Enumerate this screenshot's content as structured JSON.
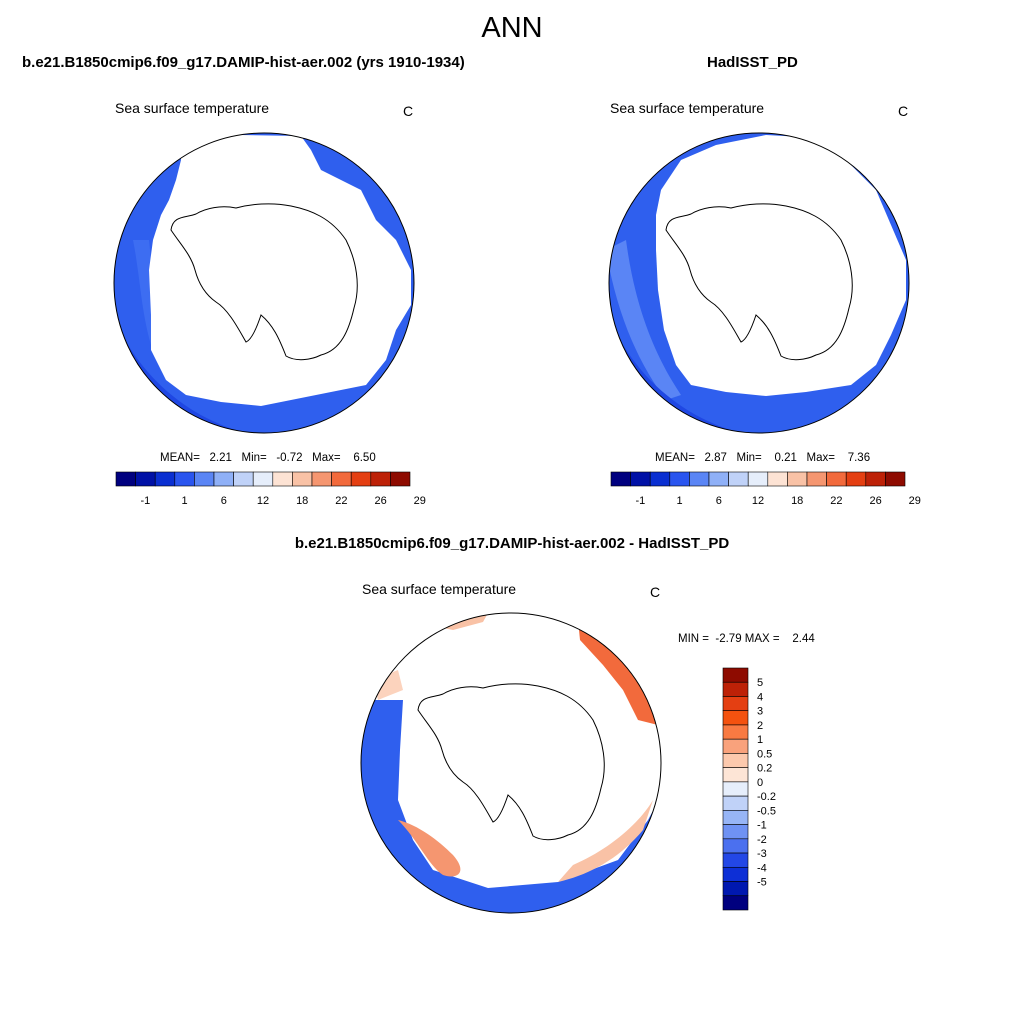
{
  "main_title": "ANN",
  "panel_left": {
    "title": "b.e21.B1850cmip6.f09_g17.DAMIP-hist-aer.002 (yrs 1910-1934)",
    "var_label": "Sea surface temperature",
    "units": "C",
    "stats": "MEAN=   2.21   Min=   -0.72   Max=    6.50"
  },
  "panel_right": {
    "title": "HadISST_PD",
    "var_label": "Sea surface temperature",
    "units": "C",
    "stats": "MEAN=   2.87   Min=    0.21   Max=    7.36"
  },
  "panel_diff": {
    "title": "b.e21.B1850cmip6.f09_g17.DAMIP-hist-aer.002 - HadISST_PD",
    "var_label": "Sea surface temperature",
    "units": "C",
    "stats": "MIN =  -2.79 MAX =    2.44"
  },
  "abs_colorbar": {
    "colors": [
      "#00007f",
      "#0011a6",
      "#0a2fd1",
      "#2a55ef",
      "#5a85f5",
      "#8fb0f7",
      "#c0d2f8",
      "#e6eefb",
      "#fde3d4",
      "#f9c2a6",
      "#f59670",
      "#f26a3c",
      "#e43f12",
      "#bd2107",
      "#8e0b00"
    ],
    "tick_labels": [
      "-1",
      "1",
      "6",
      "12",
      "18",
      "22",
      "26",
      "29"
    ]
  },
  "diff_colorbar": {
    "colors": [
      "#8e0b00",
      "#bd2107",
      "#e43f12",
      "#f4520f",
      "#f97a42",
      "#f9a27c",
      "#fcc9ad",
      "#fde5d6",
      "#e6eefb",
      "#c0d2f8",
      "#97b5f6",
      "#6f92f3",
      "#4b70ef",
      "#2347e6",
      "#0d2fd6",
      "#0018b0",
      "#00007f"
    ],
    "labels": [
      "5",
      "4",
      "3",
      "2",
      "1",
      "0.5",
      "0.2",
      "0",
      "-0.2",
      "-0.5",
      "-1",
      "-2",
      "-3",
      "-4",
      "-5"
    ]
  }
}
